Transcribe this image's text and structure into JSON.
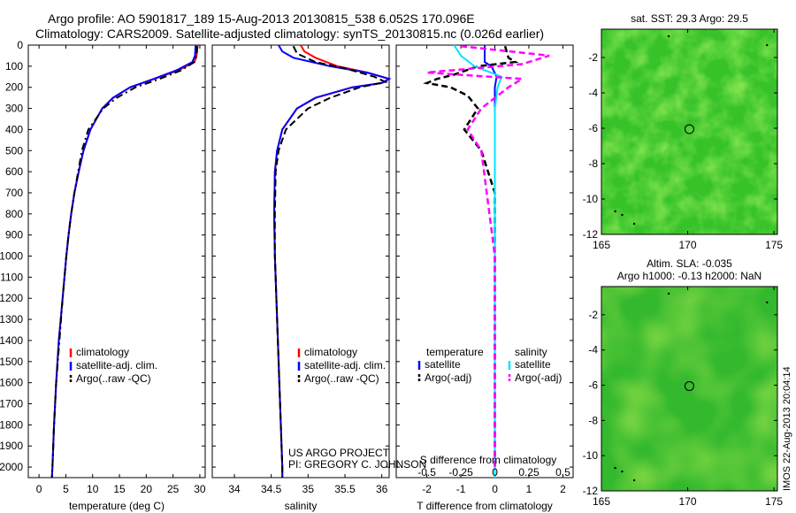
{
  "title": {
    "line1": "Argo profile: AO 5901817_189 15-Aug-2013 20130815_538 6.052S 170.096E",
    "line2": "Climatology: CARS2009. Satellite-adjusted climatology: synTS_20130815.nc (0.026d earlier)"
  },
  "colors": {
    "climatology": "#ff0000",
    "satellite": "#0000ff",
    "argo": "#000000",
    "sal_satellite": "#00e5ff",
    "sal_argo": "#ff00ff",
    "sst_map": "#37c22a",
    "sla_map": "#33b82e"
  },
  "chart_data": [
    {
      "type": "line",
      "name": "temperature-profile",
      "xlabel": "temperature (deg C)",
      "ylabel": "",
      "xlim": [
        -2,
        31
      ],
      "ylim": [
        2050,
        0
      ],
      "x_ticks": [
        0,
        5,
        10,
        15,
        20,
        25,
        30
      ],
      "y_ticks": [
        0,
        100,
        200,
        300,
        400,
        500,
        600,
        700,
        800,
        900,
        1000,
        1100,
        1200,
        1300,
        1400,
        1500,
        1600,
        1700,
        1800,
        1900,
        2000
      ],
      "legend": [
        "climatology",
        "satellite-adj. clim.",
        "Argo(..raw -QC)"
      ],
      "series": [
        {
          "name": "climatology",
          "depth": [
            0,
            50,
            80,
            120,
            160,
            200,
            250,
            300,
            400,
            500,
            600,
            700,
            800,
            900,
            1000,
            1200,
            1400,
            1600,
            1800,
            2000,
            2050
          ],
          "values": [
            29.6,
            29.4,
            29,
            26,
            21.5,
            17,
            13.8,
            11.8,
            9.6,
            8.3,
            7.4,
            6.6,
            6,
            5.5,
            5.1,
            4.4,
            3.7,
            3.2,
            2.8,
            2.5,
            2.4
          ]
        },
        {
          "name": "satellite-adj. clim.",
          "depth": [
            0,
            50,
            80,
            120,
            160,
            200,
            250,
            300,
            400,
            500,
            600,
            700,
            800,
            900,
            1000,
            1200,
            1400,
            1600,
            1800,
            2000,
            2050
          ],
          "values": [
            29.2,
            29.1,
            28.6,
            25.6,
            21.4,
            17,
            13.8,
            11.8,
            9.6,
            8.3,
            7.4,
            6.6,
            6,
            5.5,
            5.1,
            4.4,
            3.7,
            3.2,
            2.8,
            2.5,
            2.4
          ]
        },
        {
          "name": "Argo(..raw -QC)",
          "depth": [
            5,
            50,
            80,
            120,
            160,
            200,
            250,
            300,
            400,
            500,
            600,
            700,
            800,
            900,
            1000,
            1200,
            1400,
            1600,
            1800,
            2000,
            2050
          ],
          "values": [
            29.5,
            29.4,
            29,
            26.5,
            22.5,
            18,
            14.5,
            12,
            9.2,
            8,
            7.3,
            6.6,
            6,
            5.5,
            5.1,
            4.4,
            3.8,
            3.2,
            2.8,
            2.5,
            2.4
          ]
        }
      ]
    },
    {
      "type": "line",
      "name": "salinity-profile",
      "xlabel": "salinity",
      "xlim": [
        33.7,
        36.1
      ],
      "ylim": [
        2050,
        0
      ],
      "x_ticks": [
        34,
        34.5,
        35,
        35.5,
        36
      ],
      "legend": [
        "climatology",
        "satellite-adj. clim.",
        "Argo(..raw -QC)"
      ],
      "annotation": [
        "US ARGO PROJECT",
        "PI: GREGORY C. JOHNSON"
      ],
      "series": [
        {
          "name": "climatology",
          "depth": [
            0,
            30,
            60,
            100,
            130,
            160,
            180,
            200,
            250,
            300,
            400,
            500,
            600,
            800,
            1000,
            1500,
            2000,
            2050
          ],
          "values": [
            34.9,
            34.95,
            35.1,
            35.4,
            35.8,
            36.1,
            36,
            35.6,
            35.1,
            34.85,
            34.65,
            34.58,
            34.55,
            34.54,
            34.55,
            34.6,
            34.65,
            34.65
          ]
        },
        {
          "name": "satellite-adj. clim.",
          "depth": [
            0,
            30,
            60,
            100,
            130,
            160,
            180,
            200,
            250,
            300,
            400,
            500,
            600,
            800,
            1000,
            1500,
            2000,
            2050
          ],
          "values": [
            34.6,
            34.65,
            34.8,
            35.3,
            35.8,
            36.1,
            36,
            35.6,
            35.1,
            34.85,
            34.65,
            34.58,
            34.55,
            34.54,
            34.55,
            34.6,
            34.65,
            34.65
          ]
        },
        {
          "name": "Argo(..raw -QC)",
          "depth": [
            5,
            40,
            80,
            110,
            150,
            175,
            200,
            250,
            300,
            400,
            500,
            600,
            800,
            1000,
            1500,
            2000,
            2050
          ],
          "values": [
            34.8,
            34.85,
            35.1,
            35.5,
            35.9,
            36.05,
            35.7,
            35.3,
            35,
            34.7,
            34.6,
            34.56,
            34.55,
            34.55,
            34.6,
            34.65,
            34.65
          ]
        }
      ]
    },
    {
      "type": "line",
      "name": "difference-profile",
      "xlabel": "T difference from climatology",
      "xlabel_top": "S difference from climatology",
      "xlim": [
        -2.9,
        2.3
      ],
      "ylim": [
        2050,
        0
      ],
      "x_ticks_T": [
        -2,
        -1,
        0,
        1,
        2
      ],
      "x_ticks_S": [
        -0.5,
        -0.25,
        0,
        0.25,
        0.5
      ],
      "legend_headers": [
        "temperature",
        "salinity"
      ],
      "legend": [
        "satellite",
        "Argo(-adj)",
        "satellite",
        "Argo(-adj)"
      ],
      "series": [
        {
          "name": "temperature satellite",
          "depth": [
            0,
            50,
            80,
            100,
            150,
            200,
            400,
            1000,
            2000,
            2050
          ],
          "values": [
            -0.3,
            -0.3,
            -0.3,
            -0.1,
            0.05,
            0,
            0,
            0,
            0,
            0
          ]
        },
        {
          "name": "temperature Argo(-adj)",
          "depth": [
            5,
            60,
            80,
            100,
            140,
            160,
            180,
            200,
            240,
            300,
            400,
            500,
            600,
            700,
            800,
            1000,
            2000
          ],
          "values": [
            0.3,
            0.4,
            0.6,
            -0.5,
            -1.2,
            -1.7,
            -2,
            -1.3,
            -0.8,
            -0.5,
            -0.9,
            -0.4,
            -0.2,
            0,
            0,
            0,
            0
          ]
        },
        {
          "name": "salinity satellite",
          "depth": [
            0,
            50,
            100,
            150,
            200,
            300,
            400,
            1000,
            2000,
            2050
          ],
          "values": [
            -0.3,
            -0.25,
            -0.15,
            0.05,
            0.02,
            0,
            0,
            0,
            0,
            0
          ]
        },
        {
          "name": "salinity Argo(-adj)",
          "depth": [
            5,
            50,
            90,
            130,
            160,
            200,
            300,
            400,
            500,
            1000,
            2000
          ],
          "values": [
            -0.25,
            0.4,
            0.2,
            -0.5,
            0.2,
            0.1,
            -0.1,
            -0.2,
            -0.1,
            0,
            0
          ]
        }
      ]
    },
    {
      "type": "heatmap",
      "name": "sst-map",
      "title": "sat. SST: 29.3 Argo: 29.5",
      "xlim": [
        165,
        175.2
      ],
      "ylim": [
        -12,
        -0.4
      ],
      "x_ticks": [
        165,
        170,
        175
      ],
      "y_ticks": [
        -2,
        -4,
        -6,
        -8,
        -10,
        -12
      ],
      "marker": [
        170.096,
        -6.052
      ]
    },
    {
      "type": "heatmap",
      "name": "sla-map",
      "title": "Altim. SLA: -0.035",
      "subtitle": "Argo h1000: -0.13 h2000: NaN",
      "side_label": "IMOS 22-Aug-2013 20:04:14",
      "xlim": [
        165,
        175.2
      ],
      "ylim": [
        -12,
        -0.4
      ],
      "x_ticks": [
        165,
        170,
        175
      ],
      "y_ticks": [
        -2,
        -4,
        -6,
        -8,
        -10,
        -12
      ],
      "marker": [
        170.096,
        -6.052
      ]
    }
  ]
}
